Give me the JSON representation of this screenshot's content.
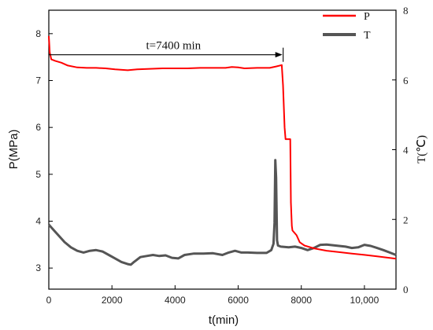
{
  "chart_data": {
    "type": "line",
    "xlabel": "t(min)",
    "ylabel_left": "P(MPa)",
    "ylabel_right": "T(℃)",
    "xlim": [
      0,
      11000
    ],
    "ylim_left": [
      2.55,
      8.5
    ],
    "ylim_right": [
      0,
      8
    ],
    "x_ticks": [
      0,
      2000,
      4000,
      6000,
      8000,
      10000
    ],
    "x_tick_labels": [
      "0",
      "2000",
      "4000",
      "6000",
      "8000",
      "10,000"
    ],
    "y_left_ticks": [
      3,
      4,
      5,
      6,
      7,
      8
    ],
    "y_left_tick_labels": [
      "3",
      "4",
      "5",
      "6",
      "7",
      "8"
    ],
    "y_right_ticks": [
      0,
      2,
      4,
      6,
      8
    ],
    "y_right_tick_labels": [
      "0",
      "2",
      "4",
      "6",
      "8"
    ],
    "grid": false,
    "legend_position": "top-right",
    "annotation": {
      "text": "t=7400 min",
      "x_start": 0,
      "x_end": 7400,
      "y": 7.55
    },
    "series": [
      {
        "name": "P",
        "axis": "left",
        "color": "#ff0000",
        "points": [
          [
            0,
            7.95
          ],
          [
            30,
            7.6
          ],
          [
            80,
            7.45
          ],
          [
            200,
            7.42
          ],
          [
            400,
            7.38
          ],
          [
            600,
            7.32
          ],
          [
            900,
            7.28
          ],
          [
            1200,
            7.27
          ],
          [
            1500,
            7.27
          ],
          [
            1800,
            7.26
          ],
          [
            2100,
            7.24
          ],
          [
            2500,
            7.22
          ],
          [
            2800,
            7.24
          ],
          [
            3200,
            7.25
          ],
          [
            3600,
            7.26
          ],
          [
            4000,
            7.26
          ],
          [
            4400,
            7.26
          ],
          [
            4800,
            7.27
          ],
          [
            5200,
            7.27
          ],
          [
            5600,
            7.27
          ],
          [
            5800,
            7.29
          ],
          [
            6000,
            7.28
          ],
          [
            6200,
            7.26
          ],
          [
            6600,
            7.27
          ],
          [
            7000,
            7.27
          ],
          [
            7200,
            7.3
          ],
          [
            7380,
            7.33
          ],
          [
            7420,
            6.9
          ],
          [
            7470,
            6.0
          ],
          [
            7500,
            5.75
          ],
          [
            7650,
            5.75
          ],
          [
            7670,
            4.4
          ],
          [
            7700,
            3.9
          ],
          [
            7720,
            3.8
          ],
          [
            7850,
            3.7
          ],
          [
            7950,
            3.55
          ],
          [
            8100,
            3.48
          ],
          [
            8400,
            3.42
          ],
          [
            8800,
            3.37
          ],
          [
            9200,
            3.34
          ],
          [
            9600,
            3.31
          ],
          [
            10000,
            3.28
          ],
          [
            10400,
            3.25
          ],
          [
            11000,
            3.2
          ]
        ]
      },
      {
        "name": "T",
        "axis": "right",
        "color": "#555555",
        "points": [
          [
            0,
            1.85
          ],
          [
            50,
            1.8
          ],
          [
            150,
            1.7
          ],
          [
            300,
            1.55
          ],
          [
            500,
            1.35
          ],
          [
            700,
            1.2
          ],
          [
            900,
            1.1
          ],
          [
            1100,
            1.05
          ],
          [
            1300,
            1.1
          ],
          [
            1500,
            1.12
          ],
          [
            1700,
            1.08
          ],
          [
            1900,
            0.98
          ],
          [
            2100,
            0.88
          ],
          [
            2300,
            0.78
          ],
          [
            2500,
            0.72
          ],
          [
            2600,
            0.7
          ],
          [
            2700,
            0.78
          ],
          [
            2900,
            0.92
          ],
          [
            3100,
            0.95
          ],
          [
            3300,
            0.98
          ],
          [
            3500,
            0.95
          ],
          [
            3700,
            0.97
          ],
          [
            3900,
            0.9
          ],
          [
            4100,
            0.88
          ],
          [
            4300,
            0.98
          ],
          [
            4600,
            1.02
          ],
          [
            4900,
            1.02
          ],
          [
            5200,
            1.03
          ],
          [
            5500,
            0.98
          ],
          [
            5700,
            1.05
          ],
          [
            5900,
            1.1
          ],
          [
            6100,
            1.05
          ],
          [
            6300,
            1.05
          ],
          [
            6600,
            1.04
          ],
          [
            6900,
            1.04
          ],
          [
            7050,
            1.12
          ],
          [
            7120,
            1.3
          ],
          [
            7150,
            1.9
          ],
          [
            7175,
            3.7
          ],
          [
            7200,
            3.2
          ],
          [
            7230,
            1.4
          ],
          [
            7260,
            1.25
          ],
          [
            7350,
            1.22
          ],
          [
            7600,
            1.2
          ],
          [
            7800,
            1.22
          ],
          [
            8000,
            1.18
          ],
          [
            8200,
            1.12
          ],
          [
            8400,
            1.18
          ],
          [
            8600,
            1.27
          ],
          [
            8800,
            1.28
          ],
          [
            9000,
            1.26
          ],
          [
            9200,
            1.24
          ],
          [
            9400,
            1.22
          ],
          [
            9600,
            1.18
          ],
          [
            9800,
            1.2
          ],
          [
            10000,
            1.27
          ],
          [
            10200,
            1.24
          ],
          [
            10400,
            1.18
          ],
          [
            10600,
            1.12
          ],
          [
            10800,
            1.05
          ],
          [
            11000,
            0.98
          ]
        ]
      }
    ]
  }
}
